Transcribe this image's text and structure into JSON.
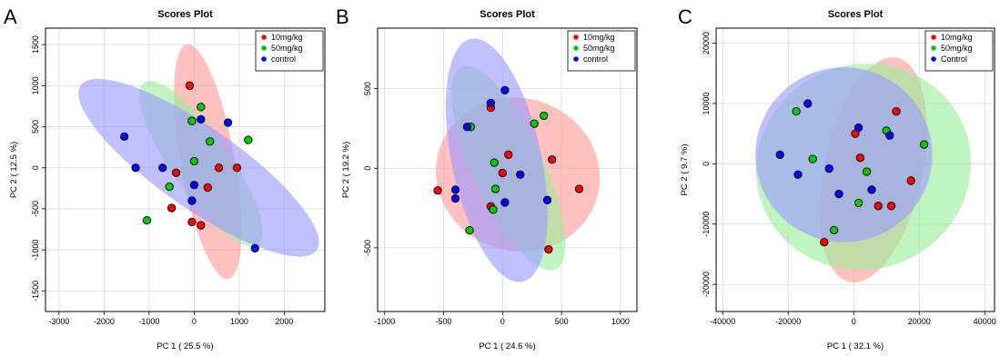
{
  "chart_data": [
    {
      "type": "scatter",
      "panel": "A",
      "title": "Scores Plot",
      "xlabel": "PC 1 ( 25.5 %)",
      "ylabel": "PC 2 ( 12.5 %)",
      "xlim": [
        -3300,
        2900
      ],
      "ylim": [
        -1750,
        1700
      ],
      "xticks": [
        -3000,
        -2000,
        -1000,
        0,
        1000,
        2000
      ],
      "yticks": [
        -1500,
        -1000,
        -500,
        0,
        500,
        1000,
        1500
      ],
      "grid": true,
      "legend": "top-right",
      "series": [
        {
          "name": "10mg/kg",
          "color": "#ff0000",
          "ellipse_color": "#ff9999",
          "ellipse": {
            "cx": 300,
            "cy": 75,
            "rx": 600,
            "ry": 1450,
            "angle_deg": 10
          },
          "x": [
            -100,
            -400,
            -500,
            550,
            950,
            300,
            -50,
            150
          ],
          "y": [
            1000,
            -60,
            -490,
            0,
            0,
            -240,
            -660,
            -700
          ]
        },
        {
          "name": "50mg/kg",
          "color": "#00cc00",
          "ellipse_color": "#99ee99",
          "ellipse": {
            "cx": 150,
            "cy": 50,
            "rx": 650,
            "ry": 1200,
            "angle_deg": 35
          },
          "x": [
            150,
            -50,
            350,
            1200,
            0,
            -550,
            -1050
          ],
          "y": [
            740,
            570,
            320,
            340,
            80,
            -230,
            -640
          ]
        },
        {
          "name": "control",
          "color": "#0000ff",
          "ellipse_color": "#9999ff",
          "ellipse": {
            "cx": 100,
            "cy": 0,
            "rx": 900,
            "ry": 1750,
            "angle_deg": 55
          },
          "x": [
            -1550,
            150,
            750,
            -1300,
            -700,
            0,
            -50,
            1350
          ],
          "y": [
            380,
            590,
            550,
            0,
            0,
            -210,
            -400,
            -980
          ]
        }
      ]
    },
    {
      "type": "scatter",
      "panel": "B",
      "title": "Scores Plot",
      "xlabel": "PC 1 ( 24.6 %)",
      "ylabel": "PC 2 ( 19.2 %)",
      "xlim": [
        -1060,
        1140
      ],
      "ylim": [
        -900,
        880
      ],
      "xticks": [
        -1000,
        -500,
        0,
        500,
        1000
      ],
      "yticks": [
        -500,
        0,
        500
      ],
      "grid": true,
      "legend": "top-right",
      "series": [
        {
          "name": "10mg/kg",
          "color": "#ff0000",
          "ellipse_color": "#ff9999",
          "ellipse": {
            "cx": 130,
            "cy": -40,
            "rx": 700,
            "ry": 480,
            "angle_deg": -18
          },
          "x": [
            -100,
            50,
            420,
            0,
            -550,
            650,
            -100,
            390
          ],
          "y": [
            380,
            85,
            55,
            -30,
            -140,
            -130,
            -240,
            -510
          ]
        },
        {
          "name": "50mg/kg",
          "color": "#00cc00",
          "ellipse_color": "#99ee99",
          "ellipse": {
            "cx": 50,
            "cy": 0,
            "rx": 300,
            "ry": 700,
            "angle_deg": 25
          },
          "x": [
            -270,
            270,
            350,
            -70,
            -60,
            -80,
            -280
          ],
          "y": [
            260,
            280,
            330,
            35,
            -130,
            -260,
            -390
          ]
        },
        {
          "name": "control",
          "color": "#0000ff",
          "ellipse_color": "#9999ff",
          "ellipse": {
            "cx": -50,
            "cy": 50,
            "rx": 380,
            "ry": 780,
            "angle_deg": 12
          },
          "x": [
            -100,
            20,
            -300,
            150,
            -400,
            -400,
            20,
            380
          ],
          "y": [
            410,
            490,
            260,
            -40,
            -135,
            -190,
            -215,
            -200
          ]
        }
      ]
    },
    {
      "type": "scatter",
      "panel": "C",
      "title": "Scores Plot",
      "xlabel": "PC 1 ( 32.1 %)",
      "ylabel": "PC 2 ( 9.7 %)",
      "xlim": [
        -42000,
        43000
      ],
      "ylim": [
        -24500,
        22500
      ],
      "xticks": [
        -40000,
        -20000,
        0,
        20000,
        40000
      ],
      "yticks": [
        -20000,
        -10000,
        0,
        10000,
        20000
      ],
      "grid": true,
      "legend": "top-right",
      "series": [
        {
          "name": "10mg/kg",
          "color": "#ff0000",
          "ellipse_color": "#ff9999",
          "ellipse": {
            "cx": 6000,
            "cy": -1000,
            "rx": 15000,
            "ry": 19000,
            "angle_deg": -12
          },
          "x": [
            13000,
            500,
            2000,
            17500,
            11500,
            7500,
            -9000
          ],
          "y": [
            8700,
            5000,
            1000,
            -2800,
            -7000,
            -7000,
            -13000
          ]
        },
        {
          "name": "50mg/kg",
          "color": "#00cc00",
          "ellipse_color": "#99ee99",
          "ellipse": {
            "cx": 3000,
            "cy": -500,
            "rx": 33000,
            "ry": 17000,
            "angle_deg": 20
          },
          "x": [
            -17500,
            10000,
            21500,
            -12500,
            4000,
            1500,
            -6000
          ],
          "y": [
            8700,
            5500,
            3200,
            800,
            -1300,
            -6500,
            -11000
          ]
        },
        {
          "name": "Control",
          "color": "#0000ff",
          "ellipse_color": "#9999ff",
          "ellipse": {
            "cx": -3000,
            "cy": 1500,
            "rx": 27000,
            "ry": 14500,
            "angle_deg": 0
          },
          "x": [
            -14000,
            1500,
            11000,
            -22500,
            -17000,
            -7500,
            5500,
            -4500
          ],
          "y": [
            10000,
            6000,
            4700,
            1500,
            -1800,
            -800,
            -4300,
            -5000
          ]
        }
      ]
    }
  ]
}
